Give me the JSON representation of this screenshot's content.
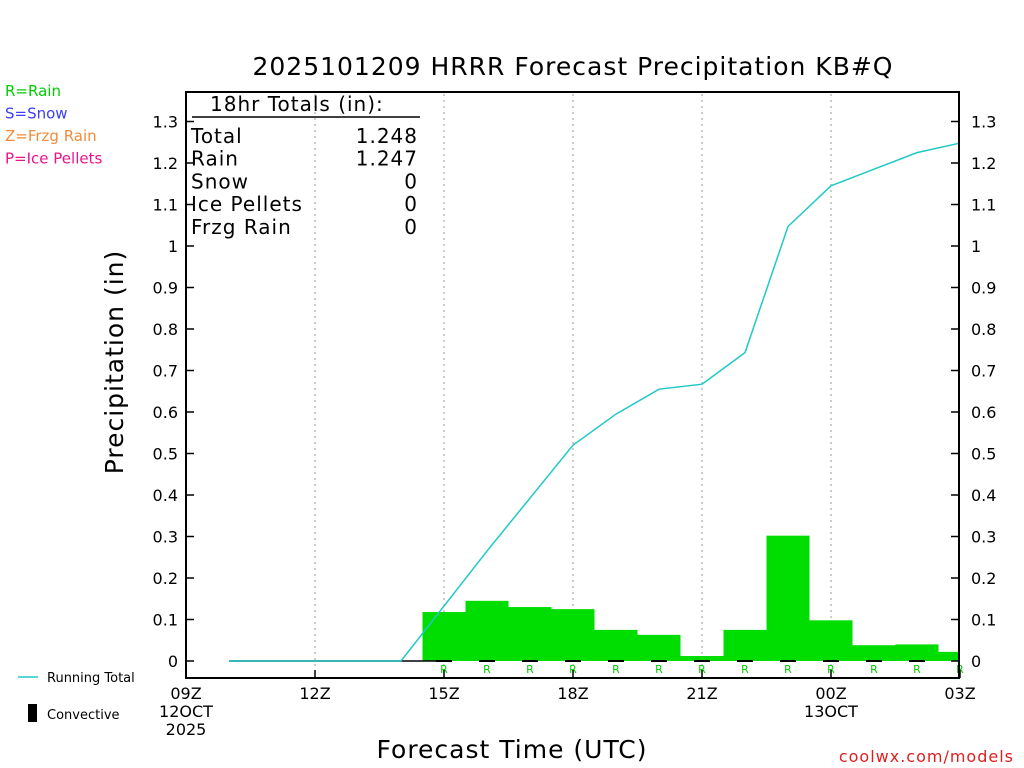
{
  "chart_data": {
    "type": "bar",
    "title": "2025101209 HRRR Forecast Precipitation KB#Q",
    "xlabel": "Forecast Time (UTC)",
    "ylabel": "Precipitation (in)",
    "ylim": [
      0,
      1.35
    ],
    "y_ticks": [
      0,
      0.1,
      0.2,
      0.3,
      0.4,
      0.5,
      0.6,
      0.7,
      0.8,
      0.9,
      1,
      1.1,
      1.2,
      1.3
    ],
    "y_tick_labels": [
      "0",
      "0.1",
      "0.2",
      "0.3",
      "0.4",
      "0.5",
      "0.6",
      "0.7",
      "0.8",
      "0.9",
      "1",
      "1.1",
      "1.2",
      "1.3"
    ],
    "xlim_hours": [
      0,
      18
    ],
    "x_ticks": [
      {
        "h": 0,
        "lines": [
          "09Z",
          "12OCT",
          "2025"
        ]
      },
      {
        "h": 3,
        "lines": [
          "12Z"
        ]
      },
      {
        "h": 6,
        "lines": [
          "15Z"
        ]
      },
      {
        "h": 9,
        "lines": [
          "18Z"
        ]
      },
      {
        "h": 12,
        "lines": [
          "21Z"
        ]
      },
      {
        "h": 15,
        "lines": [
          "00Z",
          "13OCT"
        ]
      },
      {
        "h": 18,
        "lines": [
          "03Z"
        ]
      }
    ],
    "legend_types": [
      {
        "text": "R=Rain",
        "color": "#00cc00"
      },
      {
        "text": "S=Snow",
        "color": "#3c3cff"
      },
      {
        "text": "Z=Frzg Rain",
        "color": "#f08c3c"
      },
      {
        "text": "P=Ice Pellets",
        "color": "#e8148c"
      }
    ],
    "legend_lines": [
      {
        "text": "Running Total",
        "color": "#20c8c8"
      },
      {
        "text": "Convective",
        "color": "#000000"
      }
    ],
    "totals": {
      "heading": "18hr Totals (in):",
      "rows": [
        {
          "label": "Total",
          "value": "1.248"
        },
        {
          "label": "Rain",
          "value": "1.247"
        },
        {
          "label": "Snow",
          "value": "0"
        },
        {
          "label": "Ice Pellets",
          "value": "0"
        },
        {
          "label": "Frzg Rain",
          "value": "0"
        }
      ]
    },
    "series": [
      {
        "name": "Rain",
        "color": "#00dd00",
        "bar_start_hour": [
          5.5,
          6.5,
          7.5,
          8.5,
          9.5,
          10.5,
          11.5,
          12.5,
          13.5,
          14.5,
          15.5,
          16.5,
          17.5
        ],
        "bar_end_hour": [
          6.5,
          7.5,
          8.5,
          9.5,
          10.5,
          11.5,
          12.5,
          13.5,
          14.5,
          15.5,
          16.5,
          17.5,
          18.0
        ],
        "values": [
          0.118,
          0.145,
          0.13,
          0.125,
          0.075,
          0.063,
          0.012,
          0.075,
          0.302,
          0.098,
          0.038,
          0.04,
          0.022
        ]
      },
      {
        "name": "Running Total",
        "color": "#20c8c8",
        "x_hours": [
          1,
          5,
          7,
          9,
          10,
          11,
          12,
          13,
          14,
          15,
          16,
          17,
          18
        ],
        "values": [
          0,
          0,
          0.265,
          0.52,
          0.595,
          0.655,
          0.667,
          0.743,
          1.047,
          1.145,
          1.185,
          1.225,
          1.248
        ]
      }
    ],
    "zero_line_hours": [
      1,
      6
    ],
    "convective_hours": [
      6,
      7,
      8,
      9,
      10,
      11,
      12,
      13,
      14,
      15,
      16,
      17
    ],
    "type_markers": {
      "text": "R",
      "hours": [
        6,
        7,
        8,
        9,
        10,
        11,
        12,
        13,
        14,
        15,
        16,
        17,
        18
      ]
    },
    "watermark": "coolwx.com/models"
  }
}
